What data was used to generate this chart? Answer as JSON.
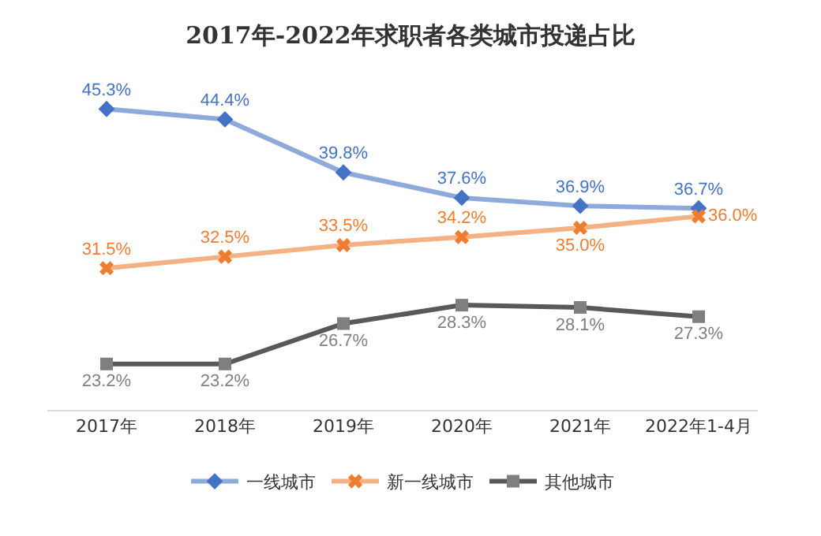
{
  "chart_data": {
    "type": "line",
    "title": "2017年-2022年求职者各类城市投递占比",
    "categories": [
      "2017年",
      "2018年",
      "2019年",
      "2020年",
      "2021年",
      "2022年1-4月"
    ],
    "series": [
      {
        "name": "一线城市",
        "color": "#8eaadb",
        "marker": "diamond",
        "values": [
          45.3,
          44.4,
          39.8,
          37.6,
          36.9,
          36.7
        ],
        "value_labels": [
          "45.3%",
          "44.4%",
          "39.8%",
          "37.6%",
          "36.9%",
          "36.7%"
        ]
      },
      {
        "name": "新一线城市",
        "color": "#f4b183",
        "marker": "cross",
        "values": [
          31.5,
          32.5,
          33.5,
          34.2,
          35.0,
          36.0
        ],
        "value_labels": [
          "31.5%",
          "32.5%",
          "33.5%",
          "34.2%",
          "35.0%",
          "36.0%"
        ]
      },
      {
        "name": "其他城市",
        "color": "#595959",
        "marker": "square",
        "values": [
          23.2,
          23.2,
          26.7,
          28.3,
          28.1,
          27.3
        ],
        "value_labels": [
          "23.2%",
          "23.2%",
          "26.7%",
          "28.3%",
          "28.1%",
          "27.3%"
        ]
      }
    ],
    "legend": "bottom",
    "tick_labels": "x",
    "line_style": "solid"
  }
}
